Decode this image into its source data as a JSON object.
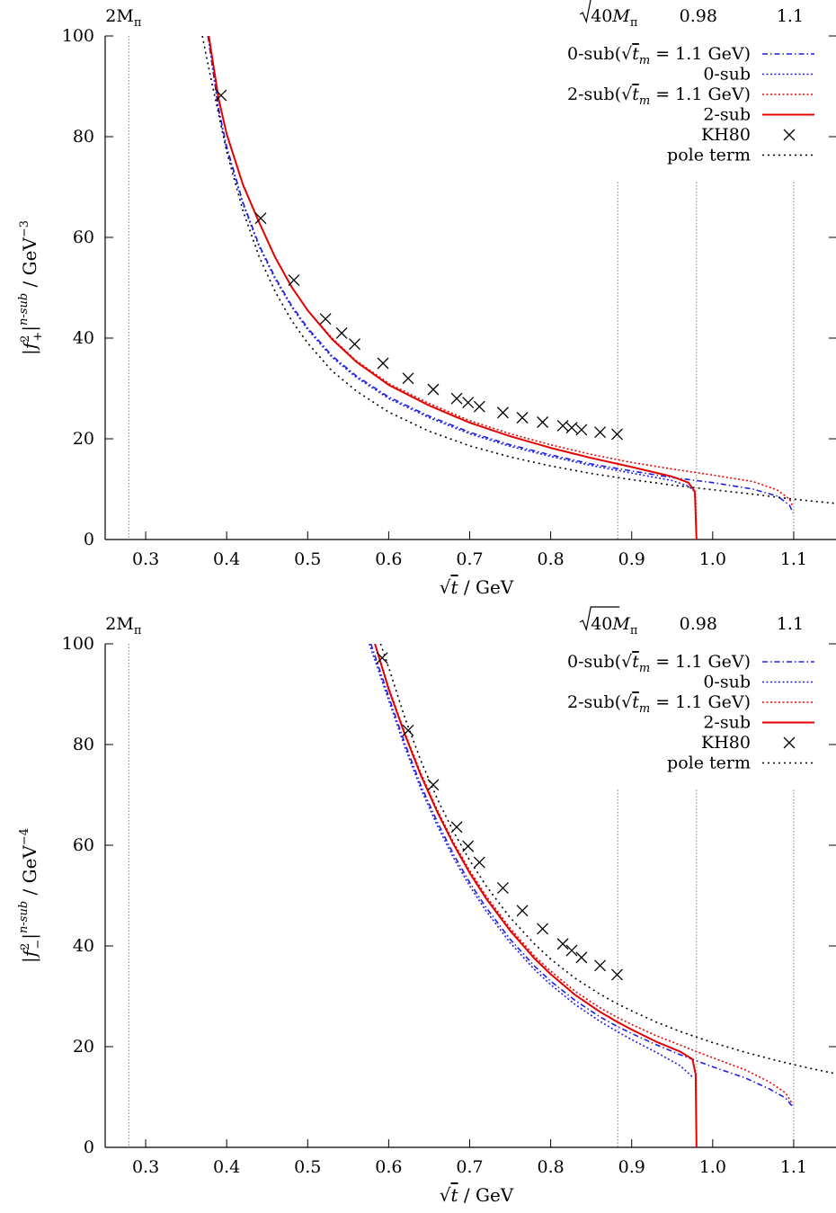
{
  "chart_data": [
    {
      "type": "line",
      "id": "plus",
      "xlabel": "√t / GeV",
      "ylabel": "|f+²|ⁿ⁻ˢᵘᵇ / GeV⁻³",
      "ylabel_main": "|f",
      "ylabel_sub": "+",
      "ylabel_end": "|",
      "ylabel_sup": "n-sub",
      "ylabel_unit": " / GeV",
      "ylabel_unit_exp": "−3",
      "xlim": [
        0.25,
        1.15
      ],
      "ylim": [
        0,
        100
      ],
      "xticks": [
        0.3,
        0.4,
        0.5,
        0.6,
        0.7,
        0.8,
        0.9,
        1.0,
        1.1
      ],
      "xtick_labels": [
        "0.3",
        "0.4",
        "0.5",
        "0.6",
        "0.7",
        "0.8",
        "0.9",
        "1.0",
        "1.1"
      ],
      "yticks": [
        0,
        20,
        40,
        60,
        80,
        100
      ],
      "ytick_labels": [
        "0",
        "20",
        "40",
        "60",
        "80",
        "100"
      ],
      "vlines": [
        0.2792,
        0.8828,
        0.98,
        1.1
      ],
      "top_labels": [
        {
          "x": 0.2792,
          "text": "2Mπ"
        },
        {
          "x": 0.8828,
          "text": "√40Mπ"
        },
        {
          "x": 0.98,
          "text": "0.98"
        },
        {
          "x": 1.1,
          "text": "1.1"
        }
      ],
      "legend_position": "top-right",
      "series": [
        {
          "name": "0-sub(√t_m = 1.1 GeV)",
          "style": "dashdot",
          "color": "#1e1ee6",
          "x": [
            0.377,
            0.39,
            0.4,
            0.42,
            0.44,
            0.46,
            0.48,
            0.5,
            0.53,
            0.56,
            0.6,
            0.65,
            0.7,
            0.75,
            0.8,
            0.85,
            0.9,
            0.95,
            1.0,
            1.05,
            1.08,
            1.095,
            1.099
          ],
          "y": [
            100,
            85.5,
            78,
            67,
            58.5,
            52,
            46.5,
            42,
            36.5,
            32.5,
            28.3,
            24.5,
            21.3,
            18.8,
            16.8,
            15.0,
            13.6,
            12.3,
            11.3,
            10.0,
            8.6,
            6.8,
            5.3
          ]
        },
        {
          "name": "0-sub",
          "style": "dotted",
          "color": "#1e1ee6",
          "x": [
            0.377,
            0.39,
            0.4,
            0.42,
            0.44,
            0.46,
            0.48,
            0.5,
            0.53,
            0.56,
            0.6,
            0.65,
            0.7,
            0.75,
            0.8,
            0.85,
            0.9,
            0.95,
            0.97,
            0.978
          ],
          "y": [
            100,
            85.2,
            77.6,
            66.7,
            58.2,
            51.7,
            46.2,
            41.7,
            36.2,
            32.2,
            28.0,
            24.2,
            21.0,
            18.5,
            16.5,
            14.7,
            13.2,
            11.7,
            10.6,
            9.5
          ]
        },
        {
          "name": "2-sub(√t_m = 1.1 GeV)",
          "style": "dotted",
          "color": "#e60000",
          "x": [
            0.378,
            0.39,
            0.4,
            0.42,
            0.44,
            0.46,
            0.48,
            0.5,
            0.53,
            0.56,
            0.6,
            0.65,
            0.7,
            0.75,
            0.8,
            0.85,
            0.9,
            0.95,
            1.0,
            1.05,
            1.08,
            1.095,
            1.099
          ],
          "y": [
            100,
            87.5,
            80.5,
            70.5,
            63,
            56,
            50.2,
            45.5,
            40,
            35.5,
            31,
            27,
            23.6,
            21.0,
            18.8,
            16.9,
            15.3,
            14.0,
            12.8,
            11.5,
            9.8,
            8.0,
            6.5
          ]
        },
        {
          "name": "2-sub",
          "style": "solid",
          "color": "#e60000",
          "x": [
            0.378,
            0.39,
            0.4,
            0.42,
            0.44,
            0.46,
            0.48,
            0.5,
            0.53,
            0.56,
            0.6,
            0.65,
            0.7,
            0.75,
            0.8,
            0.85,
            0.9,
            0.95,
            0.97,
            0.978,
            0.98
          ],
          "y": [
            100,
            87.5,
            80.5,
            70.5,
            63,
            56,
            50.2,
            45.5,
            39.8,
            35.3,
            30.7,
            26.6,
            23.2,
            20.5,
            18.2,
            16.2,
            14.4,
            12.5,
            11.3,
            9.5,
            0
          ]
        },
        {
          "name": "pole term",
          "style": "dotdot",
          "color": "#000000",
          "x": [
            0.37,
            0.38,
            0.4,
            0.42,
            0.44,
            0.46,
            0.48,
            0.5,
            0.53,
            0.56,
            0.6,
            0.65,
            0.7,
            0.75,
            0.8,
            0.85,
            0.9,
            0.95,
            1.0,
            1.05,
            1.1,
            1.15
          ],
          "y": [
            100,
            92,
            77,
            65.3,
            56.2,
            49.2,
            43.5,
            39,
            33.5,
            29.5,
            25.3,
            21.5,
            18.6,
            16.4,
            14.6,
            13.1,
            11.9,
            10.8,
            9.9,
            9.0,
            8.0,
            7.2
          ]
        }
      ],
      "kh80": {
        "name": "KH80",
        "x": [
          0.393,
          0.442,
          0.483,
          0.522,
          0.542,
          0.558,
          0.593,
          0.624,
          0.655,
          0.684,
          0.698,
          0.712,
          0.741,
          0.765,
          0.79,
          0.815,
          0.826,
          0.838,
          0.861,
          0.882
        ],
        "y": [
          88.2,
          63.8,
          51.5,
          43.8,
          41.0,
          38.8,
          35.0,
          32.0,
          29.8,
          28.0,
          27.2,
          26.4,
          25.2,
          24.2,
          23.3,
          22.6,
          22.2,
          21.8,
          21.3,
          20.9
        ]
      }
    },
    {
      "type": "line",
      "id": "minus",
      "xlabel": "√t / GeV",
      "ylabel": "|f−²|ⁿ⁻ˢᵘᵇ / GeV⁻⁴",
      "ylabel_main": "|f",
      "ylabel_sub": "−",
      "ylabel_end": "|",
      "ylabel_sup": "n-sub",
      "ylabel_unit": " / GeV",
      "ylabel_unit_exp": "−4",
      "xlim": [
        0.25,
        1.15
      ],
      "ylim": [
        0,
        100
      ],
      "xticks": [
        0.3,
        0.4,
        0.5,
        0.6,
        0.7,
        0.8,
        0.9,
        1.0,
        1.1
      ],
      "xtick_labels": [
        "0.3",
        "0.4",
        "0.5",
        "0.6",
        "0.7",
        "0.8",
        "0.9",
        "1.0",
        "1.1"
      ],
      "yticks": [
        0,
        20,
        40,
        60,
        80,
        100
      ],
      "ytick_labels": [
        "0",
        "20",
        "40",
        "60",
        "80",
        "100"
      ],
      "vlines": [
        0.2792,
        0.8828,
        0.98,
        1.1
      ],
      "top_labels": [
        {
          "x": 0.2792,
          "text": "2Mπ"
        },
        {
          "x": 0.8828,
          "text": "√40Mπ"
        },
        {
          "x": 0.98,
          "text": "0.98"
        },
        {
          "x": 1.1,
          "text": "1.1"
        }
      ],
      "legend_position": "top-right",
      "series": [
        {
          "name": "0-sub(√t_m = 1.1 GeV)",
          "style": "dashdot",
          "color": "#1e1ee6",
          "x": [
            0.578,
            0.6,
            0.62,
            0.64,
            0.66,
            0.68,
            0.7,
            0.72,
            0.75,
            0.78,
            0.8,
            0.83,
            0.86,
            0.88,
            0.9,
            0.93,
            0.96,
            0.98,
            1.0,
            1.04,
            1.07,
            1.09,
            1.099
          ],
          "y": [
            100,
            89.5,
            80.2,
            71.8,
            64.6,
            58.2,
            52.6,
            47.7,
            41.3,
            36.0,
            33.0,
            29.2,
            26.0,
            24.2,
            22.6,
            20.4,
            18.4,
            17.2,
            16.0,
            13.8,
            11.6,
            9.8,
            8.0
          ]
        },
        {
          "name": "0-sub",
          "style": "dotted",
          "color": "#1e1ee6",
          "x": [
            0.576,
            0.6,
            0.62,
            0.64,
            0.66,
            0.68,
            0.7,
            0.72,
            0.75,
            0.78,
            0.8,
            0.83,
            0.86,
            0.88,
            0.9,
            0.93,
            0.96,
            0.975
          ],
          "y": [
            100,
            88.8,
            79.5,
            71.1,
            63.9,
            57.5,
            51.9,
            47.0,
            40.6,
            35.3,
            32.3,
            28.4,
            25.1,
            23.2,
            21.4,
            18.9,
            16.2,
            14.0
          ]
        },
        {
          "name": "2-sub(√t_m = 1.1 GeV)",
          "style": "dotted",
          "color": "#e60000",
          "x": [
            0.583,
            0.6,
            0.62,
            0.64,
            0.66,
            0.68,
            0.7,
            0.72,
            0.75,
            0.78,
            0.8,
            0.83,
            0.86,
            0.88,
            0.9,
            0.93,
            0.96,
            0.98,
            1.0,
            1.04,
            1.07,
            1.09,
            1.099
          ],
          "y": [
            100,
            91.3,
            82.3,
            74.2,
            67.0,
            60.6,
            55.0,
            50.0,
            43.5,
            38.0,
            35.0,
            31.0,
            27.8,
            26.0,
            24.4,
            22.2,
            20.3,
            19.0,
            17.8,
            15.4,
            13.0,
            10.8,
            8.5
          ]
        },
        {
          "name": "2-sub",
          "style": "solid",
          "color": "#e60000",
          "x": [
            0.583,
            0.6,
            0.62,
            0.64,
            0.66,
            0.68,
            0.7,
            0.72,
            0.75,
            0.78,
            0.8,
            0.83,
            0.86,
            0.88,
            0.9,
            0.93,
            0.96,
            0.975,
            0.979,
            0.98
          ],
          "y": [
            100,
            91.0,
            82.0,
            73.8,
            66.6,
            60.2,
            54.5,
            49.5,
            43.0,
            37.5,
            34.4,
            30.3,
            27.0,
            25.1,
            23.4,
            21.0,
            19.0,
            17.5,
            14.5,
            0
          ]
        },
        {
          "name": "pole term",
          "style": "dotdot",
          "color": "#000000",
          "x": [
            0.59,
            0.6,
            0.62,
            0.64,
            0.66,
            0.68,
            0.7,
            0.72,
            0.75,
            0.78,
            0.8,
            0.83,
            0.86,
            0.88,
            0.9,
            0.93,
            0.96,
            1.0,
            1.04,
            1.08,
            1.12,
            1.15
          ],
          "y": [
            100,
            95.3,
            85.3,
            76.7,
            69.2,
            62.7,
            57.0,
            52.0,
            45.6,
            40.4,
            37.4,
            33.6,
            30.5,
            28.7,
            27.1,
            24.9,
            23.0,
            20.8,
            18.9,
            17.2,
            15.7,
            14.7
          ]
        }
      ],
      "kh80": {
        "name": "KH80",
        "x": [
          0.592,
          0.624,
          0.655,
          0.684,
          0.698,
          0.712,
          0.741,
          0.765,
          0.79,
          0.815,
          0.826,
          0.838,
          0.861,
          0.882
        ],
        "y": [
          97.2,
          82.8,
          72.0,
          63.6,
          59.8,
          56.6,
          51.5,
          47.0,
          43.4,
          40.4,
          39.1,
          37.7,
          36.1,
          34.3
        ]
      }
    }
  ],
  "legend": {
    "entries": [
      {
        "label_pre": "0-sub(",
        "label_post": " = 1.1 GeV)",
        "root_label": "t",
        "root_sub": "m"
      },
      {
        "label": "0-sub"
      },
      {
        "label_pre": "2-sub(",
        "label_post": " = 1.1 GeV)",
        "root_label": "t",
        "root_sub": "m"
      },
      {
        "label": "2-sub"
      },
      {
        "label": "KH80"
      },
      {
        "label": "pole term"
      }
    ]
  },
  "xlabel_var": "t",
  "xlabel_unit": " / GeV",
  "top_label_vars": {
    "twoM": "2M",
    "pi": "π",
    "root40": "40",
    "M": "M",
    "v098": "0.98",
    "v11": "1.1"
  },
  "colors": {
    "blue": "#1e1ee6",
    "red": "#e60000",
    "black": "#000000",
    "grid": "#808080"
  }
}
